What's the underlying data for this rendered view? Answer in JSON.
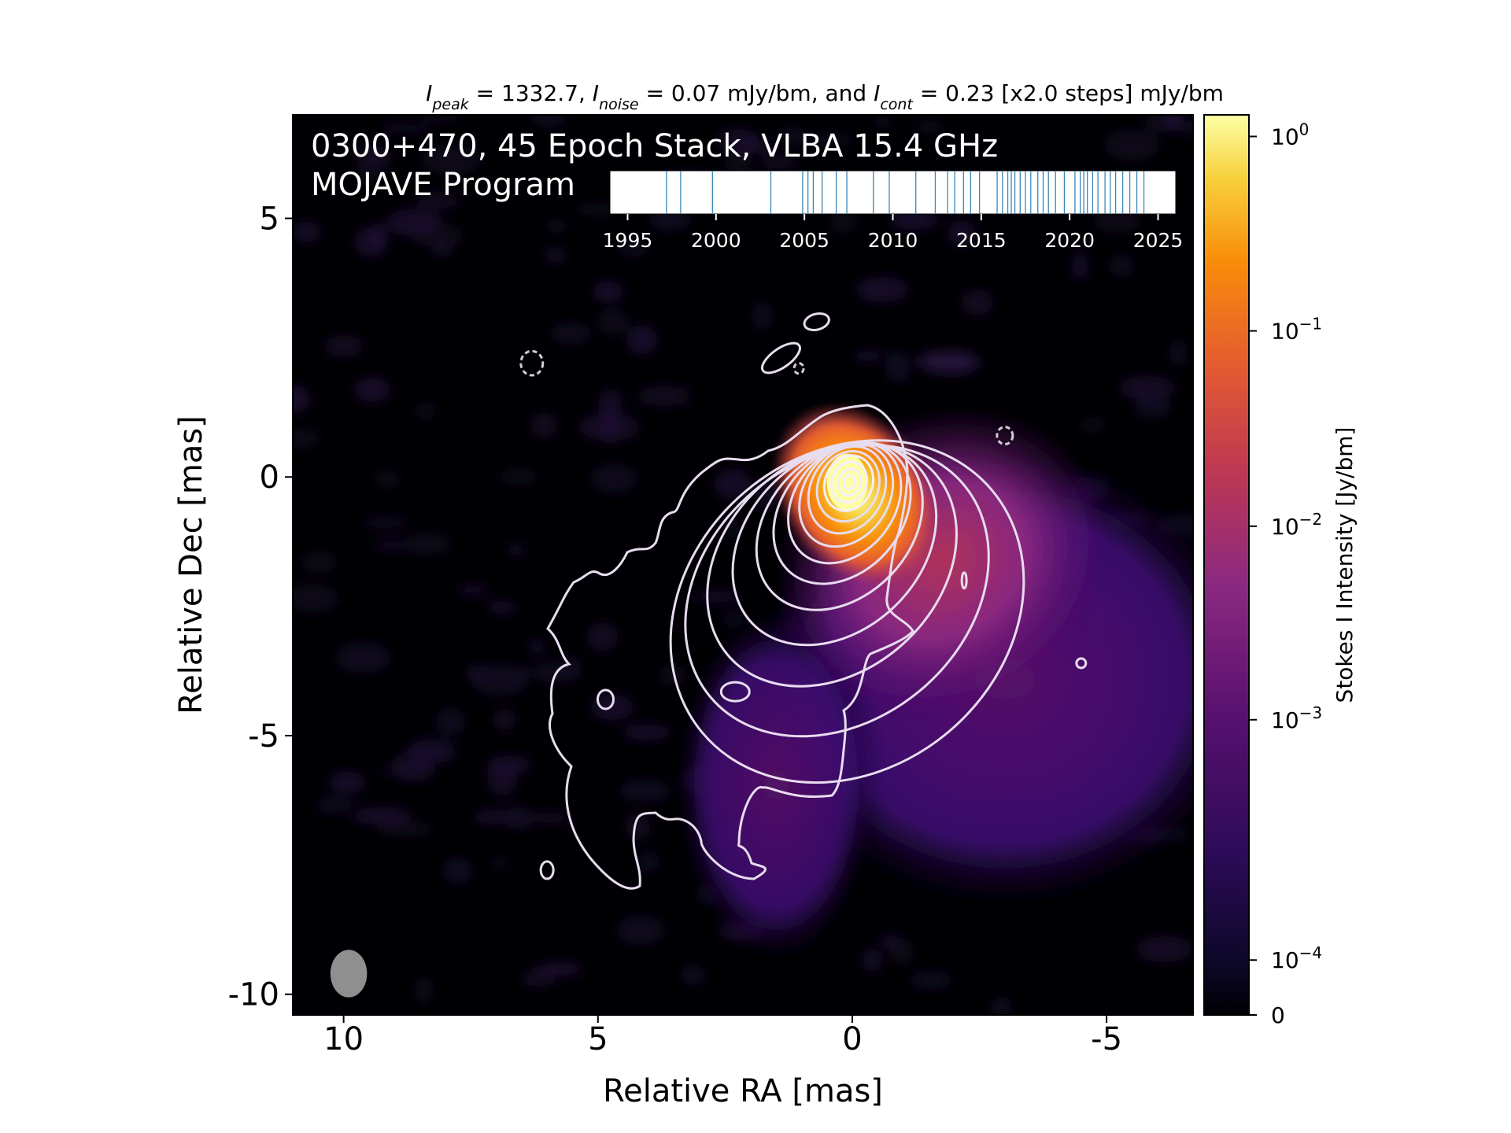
{
  "chart_data": {
    "type": "heatmap",
    "header": {
      "peak_sym": "I",
      "peak_sub": "peak",
      "peak_val": " = 1332.7, ",
      "noise_sym": "I",
      "noise_sub": "noise",
      "noise_val": " = 0.07 mJy/bm, and ",
      "cont_sym": "I",
      "cont_sub": "cont",
      "cont_val": " = 0.23 [x2.0 steps] mJy/bm"
    },
    "title_line1": "0300+470, 45 Epoch Stack, VLBA 15.4 GHz",
    "title_line2": "MOJAVE Program",
    "xlabel": "Relative RA [mas]",
    "ylabel": "Relative Dec [mas]",
    "xlim": [
      11.0,
      -6.7
    ],
    "ylim": [
      -10.4,
      7.0
    ],
    "x_ticks": [
      10,
      5,
      0,
      -5
    ],
    "x_tick_labels": [
      "10",
      "5",
      "0",
      "-5"
    ],
    "y_ticks": [
      5,
      0,
      -5,
      -10
    ],
    "y_tick_labels": [
      "5",
      "0",
      "-5",
      "-10"
    ],
    "colorbar": {
      "label": "Stokes I Intensity [Jy/bm]",
      "scale": "symlog",
      "colormap": "inferno",
      "ticks": [
        {
          "base": "10",
          "exp": "0"
        },
        {
          "base": "10",
          "exp": "−1"
        },
        {
          "base": "10",
          "exp": "−2"
        },
        {
          "base": "10",
          "exp": "−3"
        },
        {
          "base": "10",
          "exp": "−4"
        },
        {
          "base": "0",
          "exp": ""
        }
      ]
    },
    "epoch_timeline": {
      "tick_labels": [
        "1995",
        "2000",
        "2005",
        "2010",
        "2015",
        "2020",
        "2025"
      ],
      "range": [
        1994.0,
        2026.0
      ],
      "epochs": [
        1997.2,
        1998.0,
        1999.8,
        2003.1,
        2004.9,
        2005.2,
        2005.5,
        2006.0,
        2006.8,
        2007.4,
        2008.9,
        2009.8,
        2011.3,
        2012.4,
        2013.1,
        2013.5,
        2014.0,
        2014.4,
        2014.9,
        2015.9,
        2016.2,
        2016.5,
        2016.7,
        2016.9,
        2017.2,
        2017.5,
        2017.8,
        2018.2,
        2018.5,
        2018.8,
        2019.2,
        2019.7,
        2020.3,
        2020.6,
        2020.8,
        2021.0,
        2021.3,
        2021.6,
        2022.0,
        2022.3,
        2022.6,
        2023.0,
        2023.4,
        2023.8,
        2024.2
      ]
    },
    "source": {
      "core": [
        0.1,
        -0.1
      ],
      "jet_direction": "south-east",
      "peak_jy": 1.3327,
      "contours": [
        {
          "level": 0,
          "center": [
            -0.6,
            0.1
          ],
          "rx": 0.6,
          "ry": 0.6
        },
        {
          "level": 1,
          "center": [
            0.05,
            -0.1
          ],
          "rx": 0.35,
          "ry": 0.5
        }
      ]
    },
    "beam": {
      "major": 1.1,
      "minor": 0.9
    }
  }
}
